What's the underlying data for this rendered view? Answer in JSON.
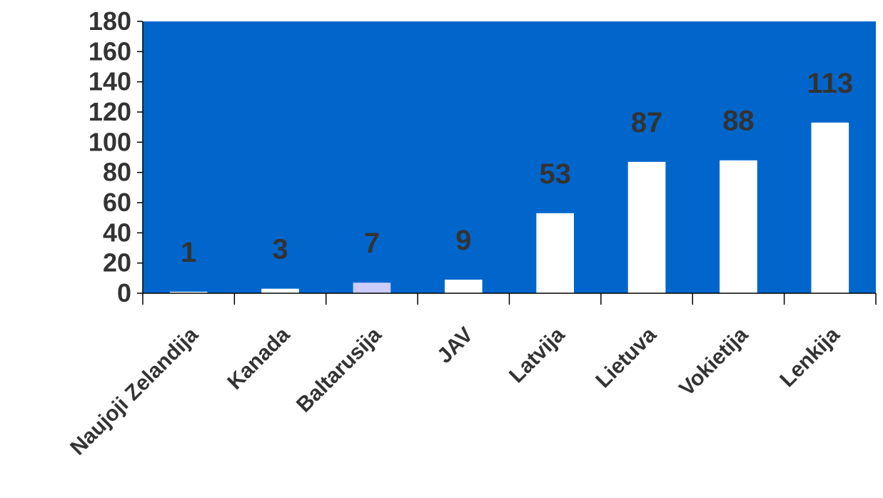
{
  "chart_data": {
    "type": "bar",
    "title": "",
    "xlabel": "",
    "ylabel": "",
    "categories": [
      "Naujoji Zelandija",
      "Kanada",
      "Baltarusija",
      "JAV",
      "Latvija",
      "Lietuva",
      "Vokietija",
      "Lenkija"
    ],
    "values": [
      1,
      3,
      7,
      9,
      53,
      87,
      88,
      113
    ],
    "data_labels": [
      "1",
      "3",
      "7",
      "9",
      "53",
      "87",
      "88",
      "113"
    ],
    "ylim": [
      0,
      180
    ],
    "yticks": [
      "0",
      "20",
      "40",
      "60",
      "80",
      "100",
      "120",
      "140",
      "160",
      "180"
    ],
    "grid": false,
    "legend": "none",
    "colors": {
      "plot_background": "#0066CC",
      "bar": "#FFFFFF",
      "bar_highlight": "#CCCCFF",
      "text": "#333333",
      "axis": "#000000"
    },
    "highlight_index": 2
  }
}
